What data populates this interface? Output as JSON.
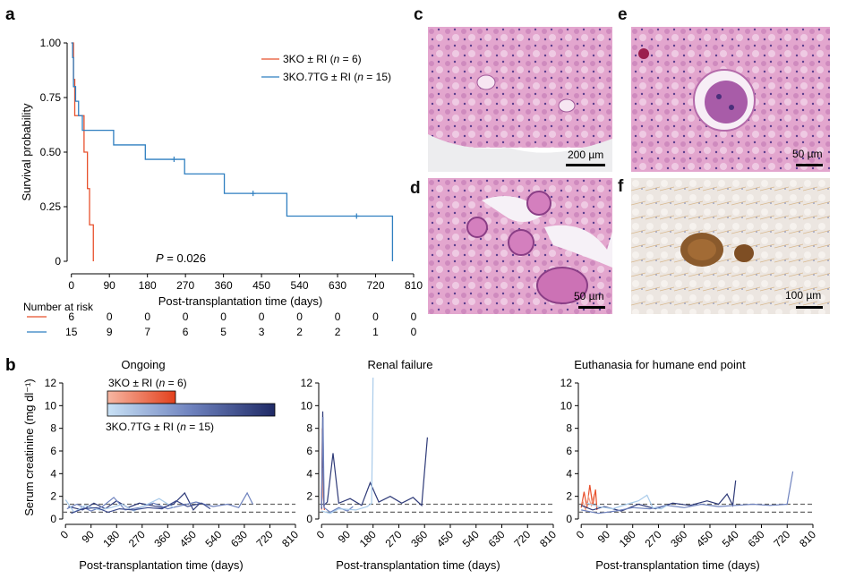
{
  "panel_labels": {
    "a": "a",
    "b": "b",
    "c": "c",
    "d": "d",
    "e": "e",
    "f": "f"
  },
  "colors": {
    "ko": "#E8502C",
    "tg": "#2F7FC0",
    "dark": "#2E3A78",
    "light": "#A9CBEA",
    "dash": "#666666"
  },
  "chart_data": [
    {
      "type": "line",
      "subtype": "kaplan-meier",
      "panel": "a",
      "xlabel": "Post-transplantation time (days)",
      "ylabel": "Survival probability",
      "xlim": [
        -10,
        810
      ],
      "ylim": [
        0,
        1
      ],
      "xticks": [
        "0",
        "90",
        "180",
        "270",
        "360",
        "450",
        "540",
        "630",
        "720",
        "810"
      ],
      "yticks": [
        "0",
        "0.25",
        "0.50",
        "0.75",
        "1.00"
      ],
      "annotation": "P = 0.026",
      "series": [
        {
          "name": "3KO ± RI (n = 6)",
          "label_main": "3KO ± RI (",
          "label_n": "n",
          "label_tail": " = 6)",
          "steps": [
            [
              0,
              1
            ],
            [
              5,
              0.833
            ],
            [
              8,
              0.667
            ],
            [
              30,
              0.5
            ],
            [
              38,
              0.333
            ],
            [
              43,
              0.167
            ],
            [
              52,
              0
            ]
          ],
          "censor": []
        },
        {
          "name": "3KO.7TG ± RI (n = 15)",
          "label_main": "3KO.7TG ± RI (",
          "label_n": "n",
          "label_tail": " = 15)",
          "steps": [
            [
              0,
              1
            ],
            [
              3,
              0.933
            ],
            [
              5,
              0.8
            ],
            [
              10,
              0.733
            ],
            [
              17,
              0.667
            ],
            [
              26,
              0.6
            ],
            [
              100,
              0.533
            ],
            [
              175,
              0.467
            ],
            [
              268,
              0.4
            ],
            [
              362,
              0.311
            ],
            [
              510,
              0.207
            ],
            [
              760,
              0
            ]
          ],
          "censor": [
            [
              243,
              0.467
            ],
            [
              430,
              0.311
            ],
            [
              675,
              0.207
            ]
          ]
        }
      ],
      "risk_table": {
        "title": "Number at risk",
        "rows": [
          {
            "name": "3KO",
            "values": [
              "6",
              "0",
              "0",
              "0",
              "0",
              "0",
              "0",
              "0",
              "0",
              "0"
            ]
          },
          {
            "name": "3KO.7TG",
            "values": [
              "15",
              "9",
              "7",
              "6",
              "5",
              "3",
              "2",
              "2",
              "1",
              "0"
            ]
          }
        ]
      }
    },
    {
      "type": "line",
      "panel": "b",
      "ylabel": "Serum creatinine (mg dl⁻¹)",
      "xlabel": "Post-transplantation time (days)",
      "xlim": [
        -10,
        810
      ],
      "ylim": [
        0,
        12
      ],
      "yticks": [
        "0",
        "2",
        "4",
        "6",
        "8",
        "10",
        "12"
      ],
      "xticks": [
        "0",
        "90",
        "180",
        "270",
        "360",
        "450",
        "540",
        "630",
        "720",
        "810"
      ],
      "reference_lines": [
        0.6,
        1.3
      ],
      "legend": {
        "ko": "3KO ± RI (n = 6)",
        "tg": "3KO.7TG ± RI (n = 15)"
      },
      "facets": [
        {
          "title": "Ongoing",
          "series": [
            {
              "name": "tg1",
              "color": "#2E3A78",
              "points": [
                [
                  10,
                  1.1
                ],
                [
                  60,
                  0.8
                ],
                [
                  100,
                  1.4
                ],
                [
                  140,
                  0.9
                ],
                [
                  180,
                  1.6
                ],
                [
                  220,
                  1.0
                ],
                [
                  260,
                  1.4
                ],
                [
                  300,
                  1.2
                ],
                [
                  340,
                  1.0
                ],
                [
                  380,
                  1.3
                ],
                [
                  420,
                  2.3
                ],
                [
                  450,
                  0.8
                ],
                [
                  470,
                  1.3
                ]
              ]
            },
            {
              "name": "tg2",
              "color": "#6E82BE",
              "points": [
                [
                  5,
                  0.9
                ],
                [
                  40,
                  1.3
                ],
                [
                  90,
                  0.7
                ],
                [
                  130,
                  1.1
                ],
                [
                  170,
                  1.9
                ],
                [
                  210,
                  0.8
                ],
                [
                  260,
                  1.0
                ],
                [
                  310,
                  1.4
                ],
                [
                  360,
                  0.9
                ],
                [
                  410,
                  1.2
                ],
                [
                  460,
                  1.5
                ],
                [
                  520,
                  1.1
                ],
                [
                  570,
                  1.3
                ],
                [
                  610,
                  1.0
                ],
                [
                  640,
                  2.3
                ],
                [
                  660,
                  1.3
                ]
              ]
            },
            {
              "name": "tg3",
              "color": "#A9CBEA",
              "points": [
                [
                  0,
                  1.7
                ],
                [
                  30,
                  0.6
                ],
                [
                  70,
                  1.2
                ],
                [
                  120,
                  0.8
                ],
                [
                  160,
                  1.0
                ],
                [
                  200,
                  1.3
                ],
                [
                  240,
                  0.7
                ],
                [
                  280,
                  1.2
                ],
                [
                  330,
                  1.8
                ],
                [
                  380,
                  1.0
                ]
              ]
            },
            {
              "name": "tg4",
              "color": "#3D4C8F",
              "points": [
                [
                  20,
                  0.5
                ],
                [
                  60,
                  0.9
                ],
                [
                  110,
                  1.0
                ],
                [
                  150,
                  0.6
                ],
                [
                  190,
                  0.9
                ],
                [
                  240,
                  0.8
                ],
                [
                  290,
                  1.0
                ],
                [
                  340,
                  0.9
                ],
                [
                  390,
                  1.6
                ],
                [
                  430,
                  1.1
                ],
                [
                  480,
                  1.4
                ],
                [
                  510,
                  0.9
                ]
              ]
            }
          ]
        },
        {
          "title": "Renal failure",
          "series": [
            {
              "name": "ko1",
              "color": "#E8502C",
              "points": [
                [
                  0,
                  1.4
                ],
                [
                  3,
                  8.0
                ],
                [
                  6,
                  2.0
                ],
                [
                  10,
                  0.8
                ]
              ]
            },
            {
              "name": "ko2",
              "color": "#F2A18A",
              "points": [
                [
                  0,
                  0.8
                ],
                [
                  4,
                  4.5
                ],
                [
                  8,
                  1.0
                ]
              ]
            },
            {
              "name": "tg1",
              "color": "#2E3A78",
              "points": [
                [
                  0,
                  0.9
                ],
                [
                  4,
                  9.5
                ],
                [
                  8,
                  1.2
                ],
                [
                  20,
                  1.5
                ],
                [
                  40,
                  5.8
                ],
                [
                  60,
                  1.4
                ],
                [
                  100,
                  1.8
                ],
                [
                  140,
                  1.2
                ],
                [
                  170,
                  3.2
                ],
                [
                  200,
                  1.5
                ],
                [
                  240,
                  2.0
                ],
                [
                  280,
                  1.4
                ],
                [
                  320,
                  1.9
                ],
                [
                  350,
                  1.2
                ],
                [
                  370,
                  7.2
                ]
              ]
            },
            {
              "name": "tg2",
              "color": "#6E82BE",
              "points": [
                [
                  0,
                  1.0
                ],
                [
                  5,
                  9.0
                ],
                [
                  9,
                  1.0
                ],
                [
                  30,
                  0.6
                ],
                [
                  60,
                  1.0
                ],
                [
                  90,
                  0.7
                ],
                [
                  110,
                  1.1
                ]
              ]
            },
            {
              "name": "tg3",
              "color": "#A9CBEA",
              "points": [
                [
                  0,
                  0.7
                ],
                [
                  30,
                  0.5
                ],
                [
                  60,
                  0.9
                ],
                [
                  120,
                  0.8
                ],
                [
                  160,
                  1.1
                ],
                [
                  175,
                  1.4
                ],
                [
                  180,
                  12.6
                ]
              ]
            }
          ]
        },
        {
          "title": "Euthanasia for humane end point",
          "series": [
            {
              "name": "ko1",
              "color": "#E8502C",
              "points": [
                [
                  0,
                  1.0
                ],
                [
                  10,
                  2.4
                ],
                [
                  20,
                  1.0
                ],
                [
                  30,
                  3.0
                ],
                [
                  40,
                  1.2
                ],
                [
                  50,
                  2.6
                ],
                [
                  55,
                  0.8
                ]
              ]
            },
            {
              "name": "ko2",
              "color": "#F2A18A",
              "points": [
                [
                  5,
                  1.6
                ],
                [
                  15,
                  0.8
                ],
                [
                  25,
                  2.0
                ],
                [
                  35,
                  1.2
                ],
                [
                  45,
                  2.2
                ]
              ]
            },
            {
              "name": "tg1",
              "color": "#2E3A78",
              "points": [
                [
                  0,
                  1.2
                ],
                [
                  40,
                  0.8
                ],
                [
                  80,
                  1.1
                ],
                [
                  140,
                  0.7
                ],
                [
                  200,
                  1.3
                ],
                [
                  260,
                  0.9
                ],
                [
                  320,
                  1.4
                ],
                [
                  380,
                  1.2
                ],
                [
                  440,
                  1.6
                ],
                [
                  480,
                  1.3
                ],
                [
                  510,
                  2.2
                ],
                [
                  530,
                  1.2
                ],
                [
                  540,
                  3.4
                ]
              ]
            },
            {
              "name": "tg2",
              "color": "#6E82BE",
              "points": [
                [
                  0,
                  0.8
                ],
                [
                  60,
                  0.5
                ],
                [
                  120,
                  0.7
                ],
                [
                  180,
                  1.0
                ],
                [
                  240,
                  0.9
                ],
                [
                  300,
                  1.2
                ],
                [
                  360,
                  1.0
                ],
                [
                  420,
                  1.3
                ],
                [
                  480,
                  1.1
                ],
                [
                  540,
                  1.2
                ],
                [
                  600,
                  1.3
                ],
                [
                  660,
                  1.2
                ],
                [
                  720,
                  1.3
                ],
                [
                  740,
                  4.2
                ]
              ]
            },
            {
              "name": "tg3",
              "color": "#A9CBEA",
              "points": [
                [
                  20,
                  1.4
                ],
                [
                  60,
                  1.1
                ],
                [
                  110,
                  0.9
                ],
                [
                  160,
                  1.3
                ],
                [
                  200,
                  1.6
                ],
                [
                  230,
                  2.1
                ],
                [
                  250,
                  1.0
                ],
                [
                  280,
                  0.9
                ],
                [
                  300,
                  1.2
                ]
              ]
            }
          ]
        }
      ]
    }
  ],
  "histology": [
    {
      "letter": "c",
      "scale": "200 µm"
    },
    {
      "letter": "d",
      "scale": "50 µm"
    },
    {
      "letter": "e",
      "scale": "50 µm"
    },
    {
      "letter": "f",
      "scale": "100 µm"
    }
  ]
}
